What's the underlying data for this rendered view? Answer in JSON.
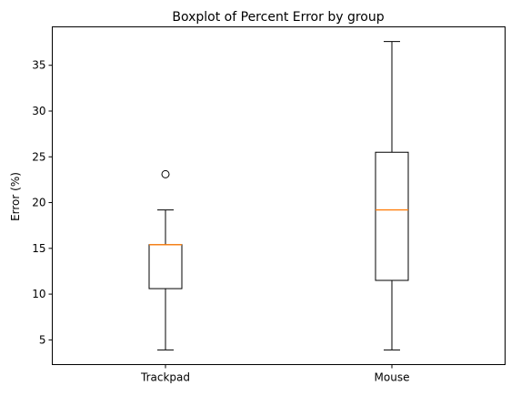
{
  "chart_data": {
    "type": "box",
    "title": "Boxplot of Percent Error by group",
    "xlabel": "",
    "ylabel": "Error (%)",
    "categories": [
      "Trackpad",
      "Mouse"
    ],
    "boxes": [
      {
        "category": "Trackpad",
        "whislo": 3.9,
        "q1": 10.6,
        "median": 15.4,
        "q3": 15.4,
        "whishi": 19.2,
        "fliers": [
          23.1
        ]
      },
      {
        "category": "Mouse",
        "whislo": 3.9,
        "q1": 11.5,
        "median": 19.2,
        "q3": 25.5,
        "whishi": 37.6,
        "fliers": []
      }
    ],
    "ylim": [
      2.3,
      39.2
    ],
    "yticks": [
      5,
      10,
      15,
      20,
      25,
      30,
      35
    ],
    "ytick_labels": [
      "5",
      "10",
      "15",
      "20",
      "25",
      "30",
      "35"
    ],
    "grid": false,
    "colors": {
      "box": "#000000",
      "median": "#ff7f0e",
      "axes": "#000000",
      "flier": "#000000"
    }
  }
}
